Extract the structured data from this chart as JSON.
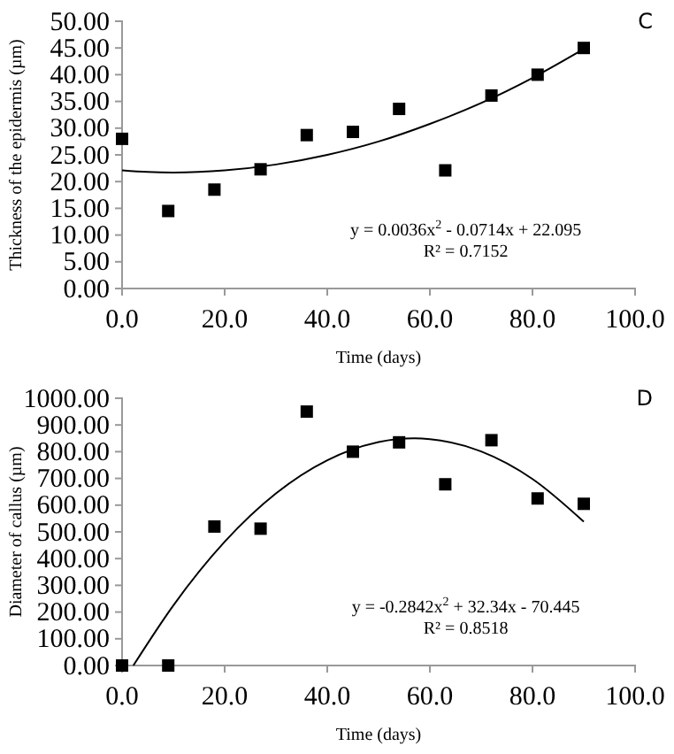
{
  "chart_data": [
    {
      "type": "scatter",
      "title": "C",
      "xlabel": "Time (days)",
      "ylabel": "Thickness of the epidermis (µm)",
      "x": [
        0,
        9,
        18,
        27,
        36,
        45,
        54,
        63,
        72,
        81,
        90
      ],
      "xlim": [
        0,
        100
      ],
      "xticks": [
        {
          "value": 0,
          "label": "0.0"
        },
        {
          "value": 20,
          "label": "20.0"
        },
        {
          "value": 40,
          "label": "40.0"
        },
        {
          "value": 60,
          "label": "60.0"
        },
        {
          "value": 80,
          "label": "80.0"
        },
        {
          "value": 100,
          "label": "100.0"
        }
      ],
      "ylim": [
        0,
        50
      ],
      "yticks": [
        {
          "value": 0,
          "label": "0.00"
        },
        {
          "value": 5,
          "label": "5.00"
        },
        {
          "value": 10,
          "label": "10.00"
        },
        {
          "value": 15,
          "label": "15.00"
        },
        {
          "value": 20,
          "label": "20.00"
        },
        {
          "value": 25,
          "label": "25.00"
        },
        {
          "value": 30,
          "label": "30.00"
        },
        {
          "value": 35,
          "label": "35.00"
        },
        {
          "value": 40,
          "label": "40.00"
        },
        {
          "value": 45,
          "label": "45.00"
        },
        {
          "value": 50,
          "label": "50.00"
        }
      ],
      "grid": false,
      "series": [
        {
          "color": "#000000",
          "marker": "square",
          "values": [
            28,
            14.5,
            18.5,
            22.3,
            28.7,
            29.3,
            33.6,
            22.1,
            36.1,
            40,
            45
          ]
        },
        {
          "type": "line",
          "color": "#000000",
          "marker": "none",
          "line_style": "solid",
          "x": [
            0,
            5,
            10,
            20,
            30,
            40,
            50,
            60,
            70,
            80,
            90
          ],
          "values": [
            22.1,
            21.8,
            21.7,
            22.1,
            23.2,
            25.0,
            27.5,
            30.8,
            34.7,
            39.4,
            44.8
          ]
        }
      ],
      "annotations": [
        "y = 0.0036x$^{2}$ - 0.0714x + 22.095",
        "R² = 0.7152"
      ]
    },
    {
      "type": "scatter",
      "title": "D",
      "xlabel": "Time (days)",
      "ylabel": "Diameter of callus (µm)",
      "x": [
        0,
        9,
        18,
        27,
        36,
        45,
        54,
        63,
        72,
        81,
        90
      ],
      "xlim": [
        0,
        100
      ],
      "xticks": [
        {
          "value": 0,
          "label": "0.0"
        },
        {
          "value": 20,
          "label": "20.0"
        },
        {
          "value": 40,
          "label": "40.0"
        },
        {
          "value": 60,
          "label": "60.0"
        },
        {
          "value": 80,
          "label": "80.0"
        },
        {
          "value": 100,
          "label": "100.0"
        }
      ],
      "ylim": [
        0,
        1000
      ],
      "yticks": [
        {
          "value": 0,
          "label": "0.00"
        },
        {
          "value": 100,
          "label": "100.00"
        },
        {
          "value": 200,
          "label": "200.00"
        },
        {
          "value": 300,
          "label": "300.00"
        },
        {
          "value": 400,
          "label": "400.00"
        },
        {
          "value": 500,
          "label": "500.00"
        },
        {
          "value": 600,
          "label": "600.00"
        },
        {
          "value": 700,
          "label": "700.00"
        },
        {
          "value": 800,
          "label": "800.00"
        },
        {
          "value": 900,
          "label": "900.00"
        },
        {
          "value": 1000,
          "label": "1000.00"
        }
      ],
      "grid": false,
      "series": [
        {
          "color": "#000000",
          "marker": "square",
          "values": [
            0,
            0,
            520,
            512,
            950,
            800,
            835,
            678,
            843,
            625,
            605
          ]
        },
        {
          "type": "line",
          "color": "#000000",
          "marker": "none",
          "line_style": "solid",
          "x": [
            2.2,
            10,
            20,
            30,
            40,
            50,
            57,
            60,
            70,
            80,
            90
          ],
          "values": [
            0,
            225,
            463,
            644,
            768,
            836,
            850,
            847,
            801,
            698,
            538
          ]
        }
      ],
      "annotations": [
        "y = -0.2842x$^{2}$ + 32.34x - 70.445",
        "R² = 0.8518"
      ]
    }
  ]
}
